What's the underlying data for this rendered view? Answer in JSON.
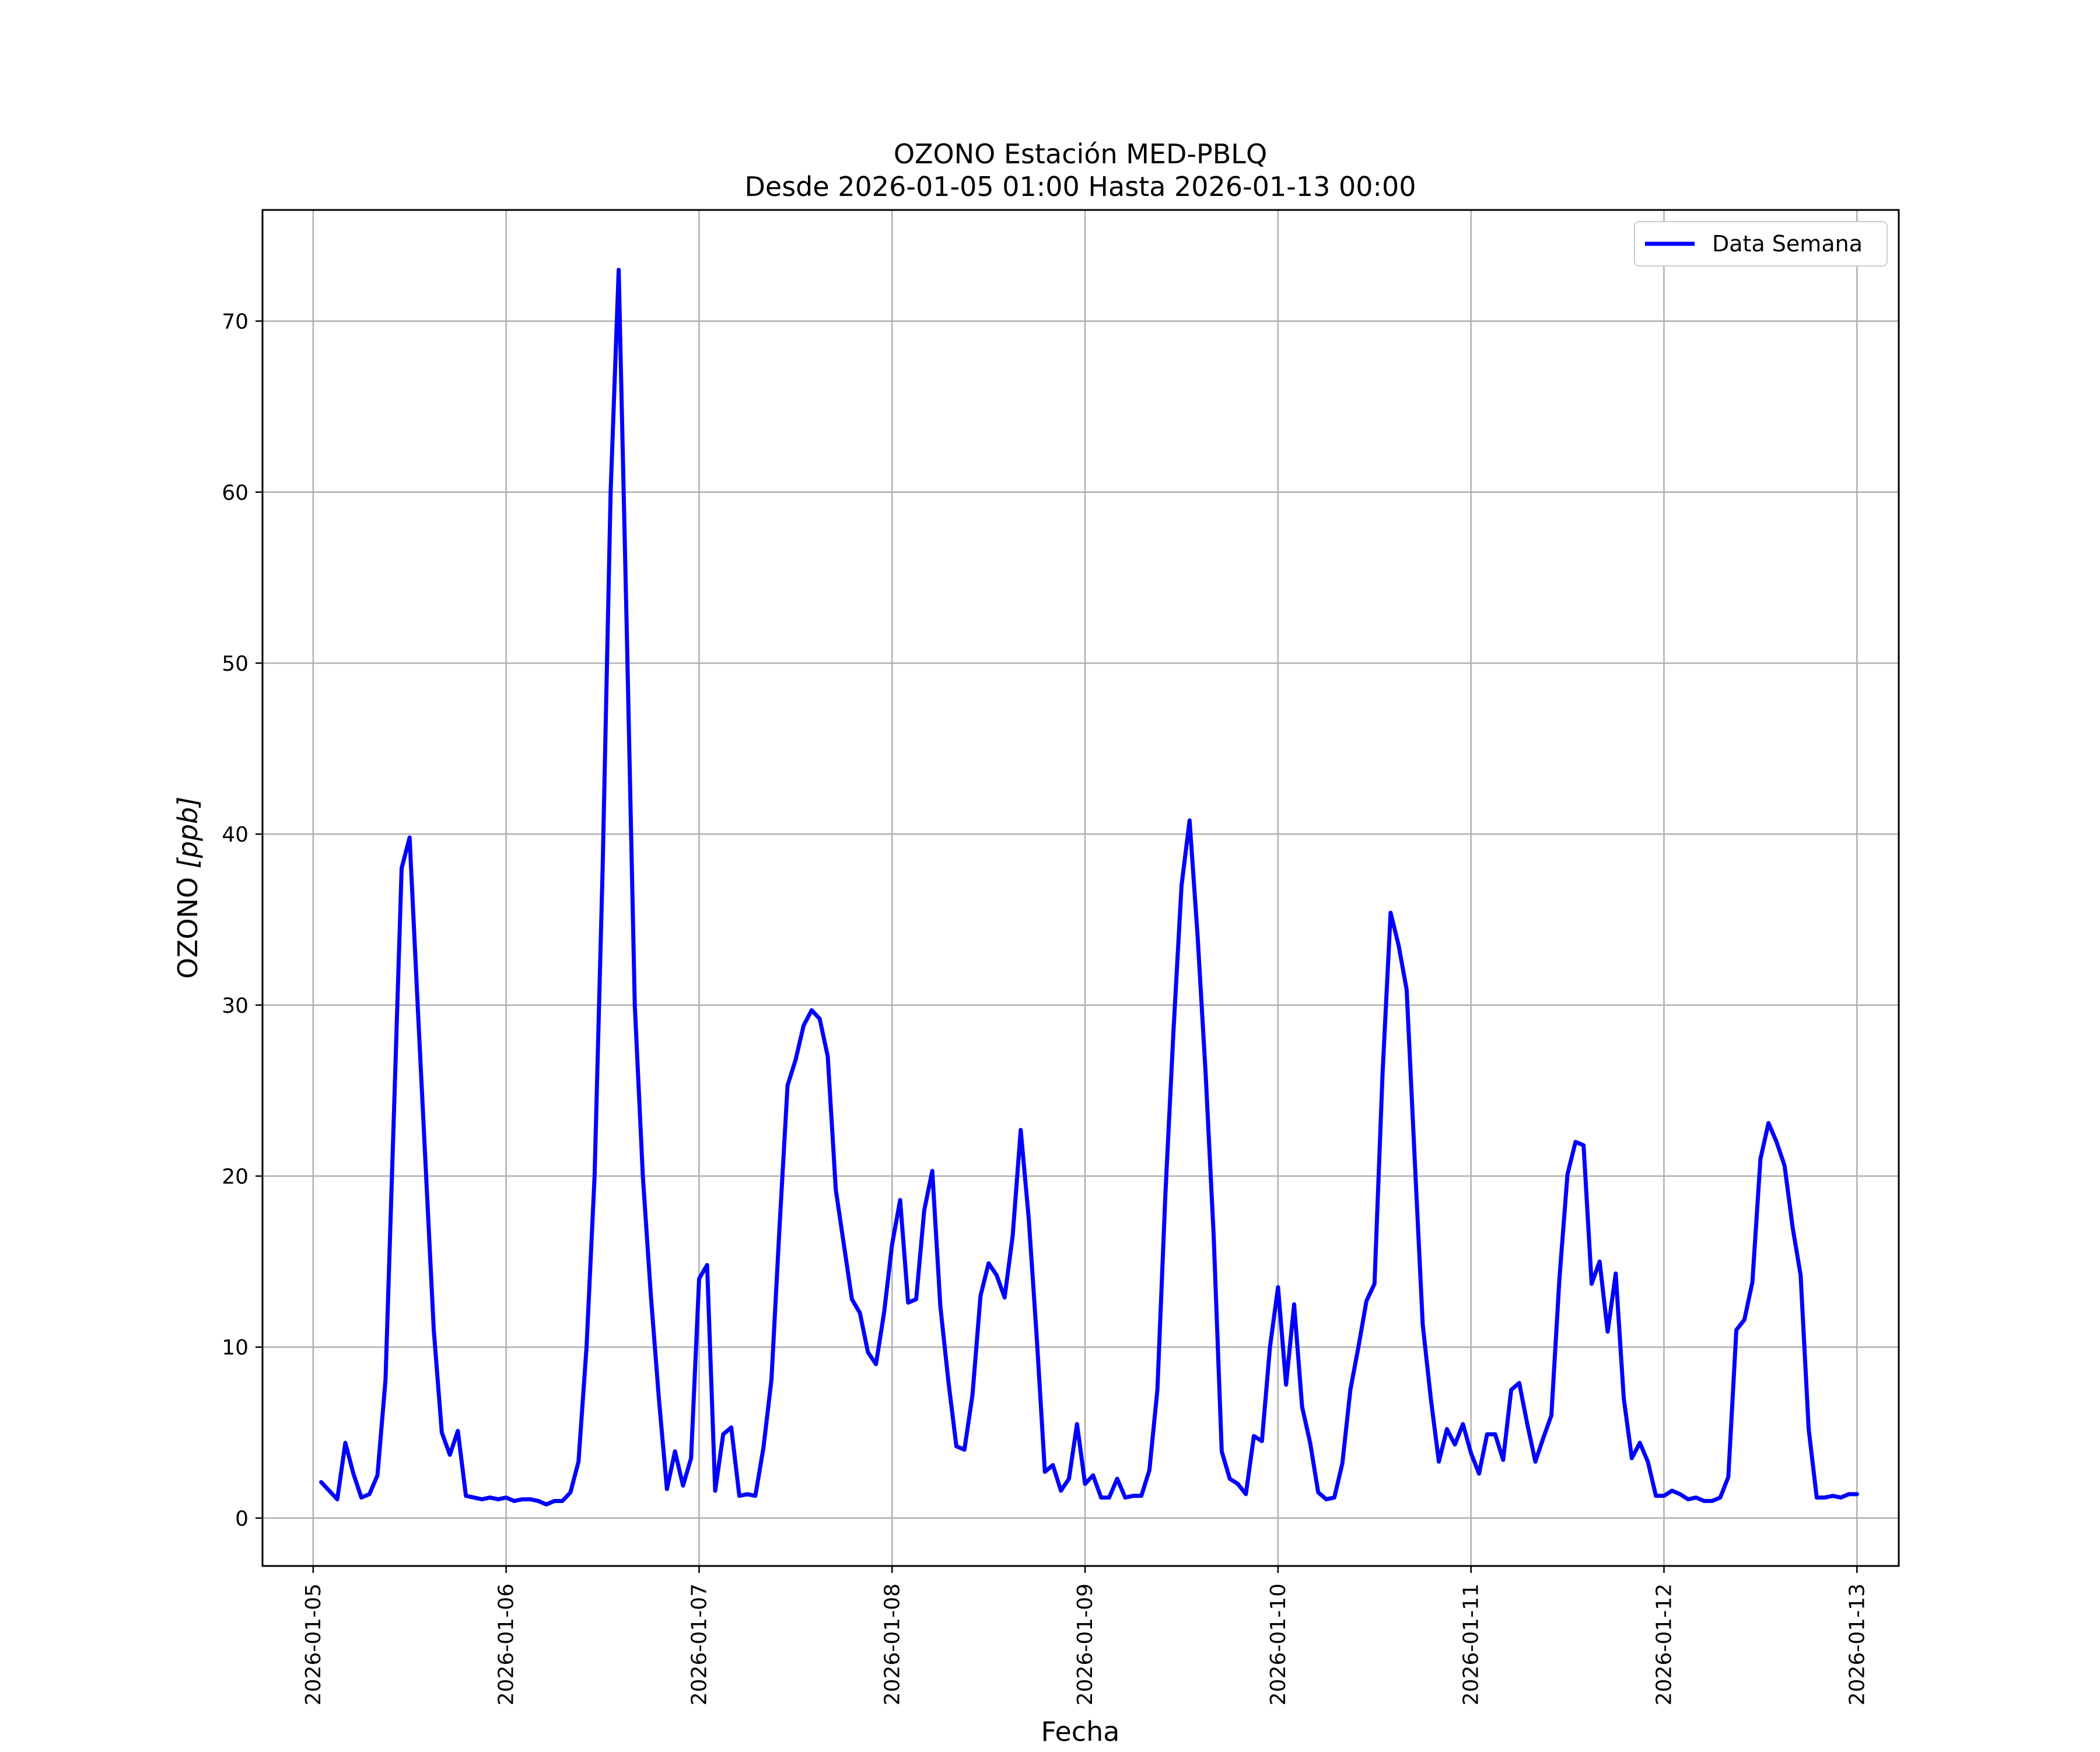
{
  "chart_data": {
    "type": "line",
    "title": "OZONO Estación MED-PBLQ",
    "subtitle": "Desde 2026-01-05 01:00 Hasta 2026-01-13 00:00",
    "xlabel": "Fecha",
    "ylabel_main": "OZONO ",
    "ylabel_unit": "[ppb]",
    "grid": true,
    "legend_position": "upper-right",
    "xlim": [
      "2026-01-04 17:42",
      "2026-01-13 05:12"
    ],
    "ylim": [
      -2.8,
      76.5
    ],
    "x_ticks": [
      "2026-01-05",
      "2026-01-06",
      "2026-01-07",
      "2026-01-08",
      "2026-01-09",
      "2026-01-10",
      "2026-01-11",
      "2026-01-12",
      "2026-01-13"
    ],
    "y_ticks": [
      0,
      10,
      20,
      30,
      40,
      50,
      60,
      70
    ],
    "y_tick_labels": [
      "0",
      "10",
      "20",
      "30",
      "40",
      "50",
      "60",
      "70"
    ],
    "series": [
      {
        "name": "Data Semana",
        "color": "#0000ff",
        "x_start": "2026-01-05 01:00",
        "x_step": "1 hour",
        "values": [
          2.1,
          1.6,
          1.1,
          4.4,
          2.6,
          1.2,
          1.4,
          2.5,
          8.1,
          23.0,
          38.0,
          39.8,
          30.0,
          20.5,
          11.0,
          5.0,
          3.7,
          5.1,
          1.3,
          1.2,
          1.1,
          1.2,
          1.1,
          1.2,
          1.0,
          1.1,
          1.1,
          1.0,
          0.8,
          1.0,
          1.0,
          1.5,
          3.3,
          10.0,
          20.0,
          38.0,
          60.0,
          73.0,
          52.0,
          30.0,
          20.0,
          13.0,
          7.0,
          1.7,
          3.9,
          1.9,
          3.5,
          14.0,
          14.8,
          1.6,
          4.9,
          5.3,
          1.3,
          1.4,
          1.3,
          4.1,
          8.1,
          17.0,
          25.3,
          26.8,
          28.8,
          29.7,
          29.2,
          27.0,
          19.2,
          16.0,
          12.8,
          12.0,
          9.7,
          9.0,
          12.0,
          16.0,
          18.6,
          12.6,
          12.8,
          18.0,
          20.3,
          12.4,
          8.0,
          4.2,
          4.0,
          7.2,
          13.0,
          14.9,
          14.2,
          12.9,
          16.5,
          22.7,
          17.5,
          10.5,
          2.7,
          3.1,
          1.6,
          2.3,
          5.5,
          2.0,
          2.5,
          1.2,
          1.2,
          2.3,
          1.2,
          1.3,
          1.3,
          2.8,
          7.5,
          19.0,
          28.5,
          37.0,
          40.8,
          34.0,
          26.0,
          16.5,
          3.9,
          2.3,
          2.0,
          1.4,
          4.8,
          4.5,
          10.0,
          13.5,
          7.8,
          12.5,
          6.5,
          4.4,
          1.5,
          1.1,
          1.2,
          3.2,
          7.5,
          10.0,
          12.7,
          13.7,
          26.0,
          35.4,
          33.5,
          30.9,
          21.0,
          11.3,
          7.0,
          3.3,
          5.2,
          4.3,
          5.5,
          3.8,
          2.6,
          4.9,
          4.9,
          3.4,
          7.5,
          7.9,
          5.5,
          3.3,
          4.7,
          6.0,
          14.0,
          20.1,
          22.0,
          21.8,
          13.7,
          15.0,
          10.9,
          14.3,
          7.0,
          3.5,
          4.4,
          3.3,
          1.3,
          1.3,
          1.6,
          1.4,
          1.1,
          1.2,
          1.0,
          1.0,
          1.2,
          2.4,
          11.0,
          11.6,
          13.8,
          21.0,
          23.1,
          22.0,
          20.6,
          17.0,
          14.2,
          5.2,
          1.2,
          1.2,
          1.3,
          1.2,
          1.4,
          1.4
        ]
      }
    ]
  }
}
